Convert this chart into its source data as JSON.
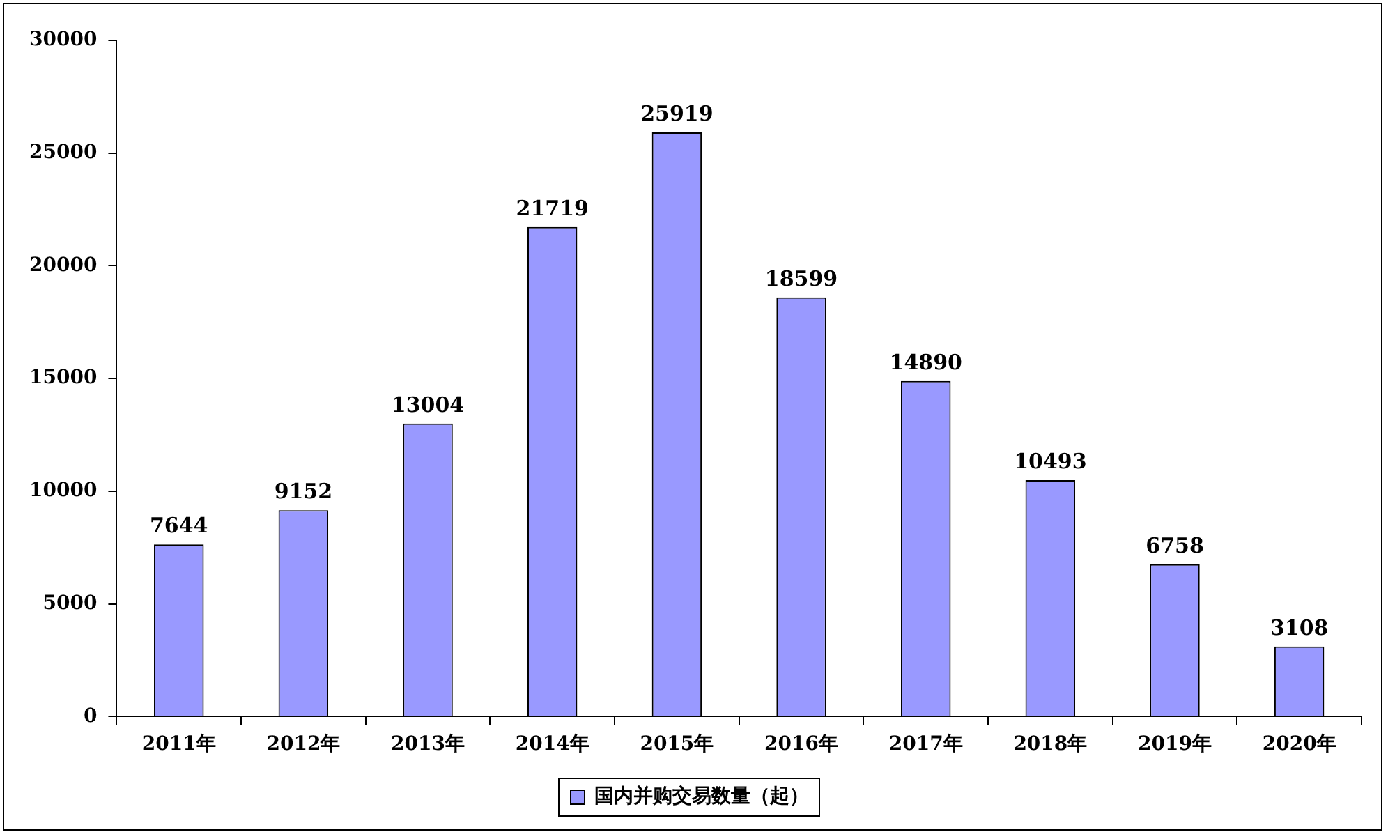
{
  "chart_data": {
    "type": "bar",
    "categories": [
      "2011年",
      "2012年",
      "2013年",
      "2014年",
      "2015年",
      "2016年",
      "2017年",
      "2018年",
      "2019年",
      "2020年"
    ],
    "series": [
      {
        "name": "国内并购交易数量（起）",
        "color": "#9999ff",
        "values": [
          7644,
          9152,
          13004,
          21719,
          25919,
          18599,
          14890,
          10493,
          6758,
          3108
        ]
      }
    ],
    "ylim": [
      0,
      30000
    ],
    "yticks": [
      0,
      5000,
      10000,
      15000,
      20000,
      25000,
      30000
    ],
    "grid": false,
    "legend": "bottom",
    "data_labels": true
  }
}
